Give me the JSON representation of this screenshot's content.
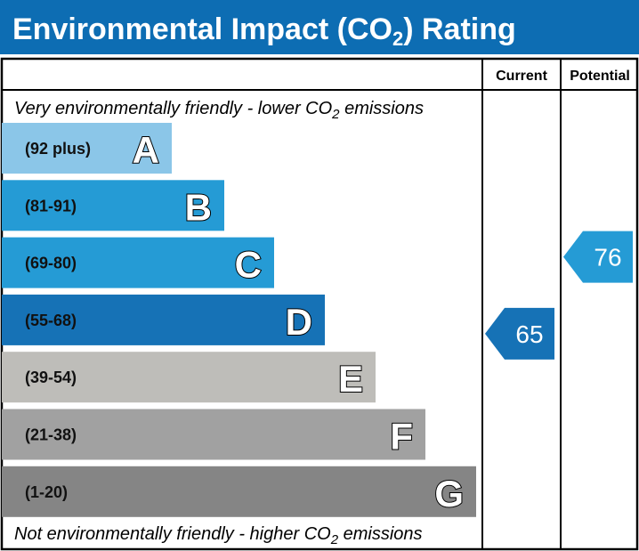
{
  "title_main": "Environmental Impact (CO",
  "title_sub": "2",
  "title_end": ") Rating",
  "colors": {
    "title_bar": "#0d6db3"
  },
  "chart_data": {
    "type": "bar",
    "columns": [
      "Current",
      "Potential"
    ],
    "top_note": {
      "text": "Very environmentally friendly - lower CO",
      "sub": "2",
      "end": " emissions"
    },
    "bottom_note": {
      "text": "Not environmentally friendly - higher CO",
      "sub": "2",
      "end": " emissions"
    },
    "bands": [
      {
        "letter": "A",
        "range": "(92 plus)",
        "color": "#8bc6e8"
      },
      {
        "letter": "B",
        "range": "(81-91)",
        "color": "#259bd5"
      },
      {
        "letter": "C",
        "range": "(69-80)",
        "color": "#259bd5"
      },
      {
        "letter": "D",
        "range": "(55-68)",
        "color": "#1672b6"
      },
      {
        "letter": "E",
        "range": "(39-54)",
        "color": "#bebdb9"
      },
      {
        "letter": "F",
        "range": "(21-38)",
        "color": "#a1a1a1"
      },
      {
        "letter": "G",
        "range": "(1-20)",
        "color": "#858585"
      }
    ],
    "current": {
      "value": 65,
      "band": "D",
      "color": "#1672b6"
    },
    "potential": {
      "value": 76,
      "band": "C",
      "color": "#259bd5"
    }
  }
}
